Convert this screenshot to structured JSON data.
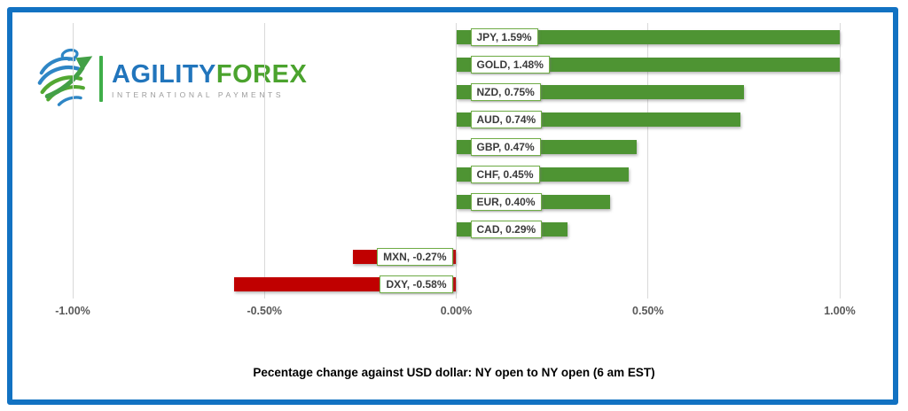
{
  "logo": {
    "brand_primary": "AGILITY",
    "brand_secondary": "FOREX",
    "tagline": "INTERNATIONAL PAYMENTS",
    "colors": {
      "primary": "#2175bc",
      "secondary": "#4ba32e",
      "tagline": "#9b9b9b"
    }
  },
  "frame": {
    "border_color": "#1272c2"
  },
  "chart_data": {
    "type": "bar",
    "orientation": "horizontal",
    "title": "Pecentage change against USD dollar: NY open to NY open  (6 am EST)",
    "categories": [
      "JPY",
      "GOLD",
      "NZD",
      "AUD",
      "GBP",
      "CHF",
      "EUR",
      "CAD",
      "MXN",
      "DXY"
    ],
    "values": [
      1.59,
      1.48,
      0.75,
      0.74,
      0.47,
      0.45,
      0.4,
      0.29,
      -0.27,
      -0.58
    ],
    "data_labels": [
      "JPY, 1.59%",
      "GOLD, 1.48%",
      "NZD, 0.75%",
      "AUD, 0.74%",
      "GBP, 0.47%",
      "CHF, 0.45%",
      "EUR, 0.40%",
      "CAD, 0.29%",
      "MXN, -0.27%",
      "DXY, -0.58%"
    ],
    "x_ticks": [
      {
        "label": "-1.00%",
        "value": -1.0
      },
      {
        "label": "-0.50%",
        "value": -0.5
      },
      {
        "label": "0.00%",
        "value": 0.0
      },
      {
        "label": "0.50%",
        "value": 0.5
      },
      {
        "label": "1.00%",
        "value": 1.0
      }
    ],
    "xlim": [
      -1.0,
      1.0
    ],
    "gridlines": true,
    "legend": "none",
    "colors": {
      "positive": "#4e9433",
      "negative": "#c00000",
      "label_border": "#70ad47",
      "gridline": "#d9d9d9",
      "axis_text": "#595959"
    },
    "note": "bars exceeding xlim are clipped at plot edge"
  }
}
